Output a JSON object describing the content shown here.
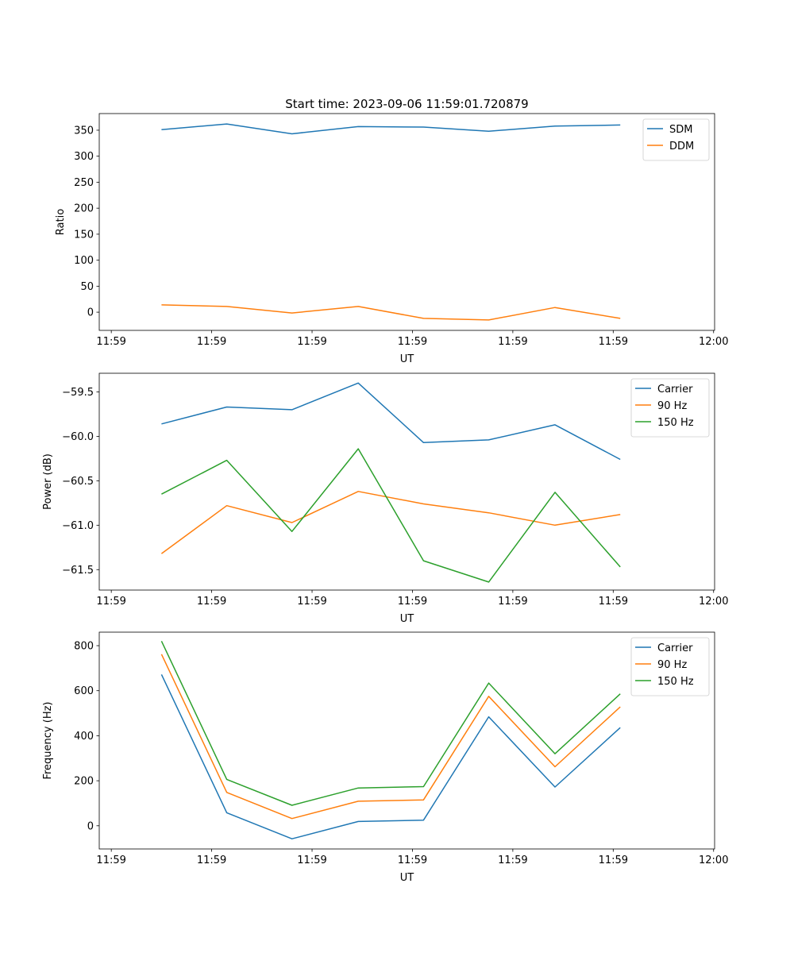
{
  "chart_data": [
    {
      "type": "line",
      "title": "Start time: 2023-09-06 11:59:01.720879",
      "xlabel": "UT",
      "ylabel": "Ratio",
      "x_unit": "seconds after 11:59:00",
      "xlim": [
        -1.2,
        60.1
      ],
      "ylim": [
        -35,
        382
      ],
      "xticks": [
        0,
        10,
        20,
        30,
        40,
        50,
        60
      ],
      "xtick_labels": [
        "11:59",
        "11:59",
        "11:59",
        "11:59",
        "11:59",
        "11:59",
        "12:00"
      ],
      "yticks": [
        0,
        50,
        100,
        150,
        200,
        250,
        300,
        350
      ],
      "ytick_labels": [
        "0",
        "50",
        "100",
        "150",
        "200",
        "250",
        "300",
        "350"
      ],
      "legend": "top-right",
      "x": [
        5.0,
        11.5,
        18.0,
        24.6,
        31.1,
        37.6,
        44.2,
        50.7
      ],
      "series": [
        {
          "name": "SDM",
          "color": "#1f77b4",
          "values": [
            351,
            362,
            343,
            357,
            356,
            348,
            358,
            360
          ]
        },
        {
          "name": "DDM",
          "color": "#ff7f0e",
          "values": [
            14,
            11,
            -1.5,
            11,
            -12,
            -15,
            9,
            -12
          ]
        }
      ]
    },
    {
      "type": "line",
      "title": "",
      "xlabel": "UT",
      "ylabel": "Power (dB)",
      "xlim": [
        -1.2,
        60.1
      ],
      "ylim": [
        -61.73,
        -59.29
      ],
      "xticks": [
        0,
        10,
        20,
        30,
        40,
        50,
        60
      ],
      "xtick_labels": [
        "11:59",
        "11:59",
        "11:59",
        "11:59",
        "11:59",
        "11:59",
        "12:00"
      ],
      "yticks": [
        -61.5,
        -61.0,
        -60.5,
        -60.0,
        -59.5
      ],
      "ytick_labels": [
        "−61.5",
        "−61.0",
        "−60.5",
        "−60.0",
        "−59.5"
      ],
      "legend": "top-right",
      "x": [
        5.0,
        11.5,
        18.0,
        24.6,
        31.1,
        37.6,
        44.2,
        50.7
      ],
      "series": [
        {
          "name": "Carrier",
          "color": "#1f77b4",
          "values": [
            -59.86,
            -59.67,
            -59.7,
            -59.4,
            -60.07,
            -60.04,
            -59.87,
            -60.26
          ]
        },
        {
          "name": "90 Hz",
          "color": "#ff7f0e",
          "values": [
            -61.32,
            -60.78,
            -60.97,
            -60.62,
            -60.76,
            -60.86,
            -61.0,
            -60.88
          ]
        },
        {
          "name": "150 Hz",
          "color": "#2ca02c",
          "values": [
            -60.65,
            -60.27,
            -61.07,
            -60.14,
            -61.4,
            -61.64,
            -60.63,
            -61.47
          ]
        }
      ]
    },
    {
      "type": "line",
      "title": "",
      "xlabel": "UT",
      "ylabel": "Frequency (Hz)",
      "xlim": [
        -1.2,
        60.1
      ],
      "ylim": [
        -103,
        860
      ],
      "xticks": [
        0,
        10,
        20,
        30,
        40,
        50,
        60
      ],
      "xtick_labels": [
        "11:59",
        "11:59",
        "11:59",
        "11:59",
        "11:59",
        "11:59",
        "12:00"
      ],
      "yticks": [
        0,
        200,
        400,
        600,
        800
      ],
      "ytick_labels": [
        "0",
        "200",
        "400",
        "600",
        "800"
      ],
      "legend": "top-right",
      "x": [
        5.0,
        11.5,
        18.0,
        24.6,
        31.1,
        37.6,
        44.2,
        50.7
      ],
      "series": [
        {
          "name": "Carrier",
          "color": "#1f77b4",
          "values": [
            672,
            58,
            -58,
            19,
            25,
            484,
            172,
            436
          ]
        },
        {
          "name": "90 Hz",
          "color": "#ff7f0e",
          "values": [
            762,
            148,
            32,
            109,
            115,
            575,
            262,
            528
          ]
        },
        {
          "name": "150 Hz",
          "color": "#2ca02c",
          "values": [
            820,
            206,
            91,
            168,
            174,
            634,
            320,
            586
          ]
        }
      ]
    }
  ]
}
